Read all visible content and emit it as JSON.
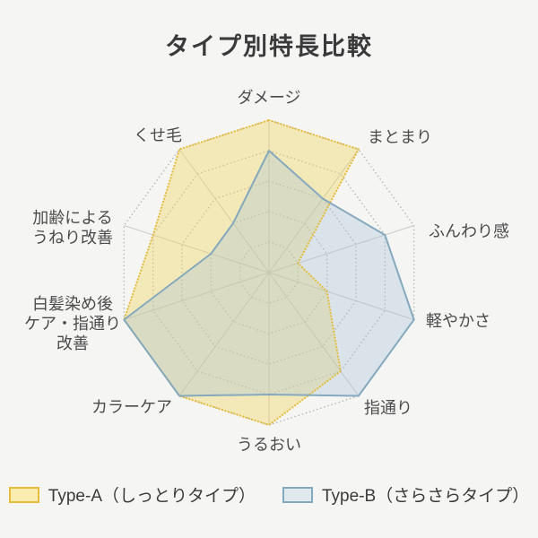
{
  "title": "タイプ別特長比較",
  "colors": {
    "background": "#f5f5f4",
    "title_text": "#3a3a3a",
    "label_text": "#4b4b4b",
    "axis_line": "#c9c9c7",
    "ring_line": "#b3b3b3",
    "type_a_fill": "#f0d560",
    "type_a_fill_opacity": 0.4,
    "type_a_stroke": "#e4bd3e",
    "type_b_fill": "#a8c4d4",
    "type_b_fill_opacity": 0.35,
    "type_b_stroke": "#85a9bd"
  },
  "chart_data": {
    "type": "radar",
    "title": "タイプ別特長比較",
    "max": 5,
    "levels": 5,
    "grid": "dotted-decagon-rings-with-solid-axes",
    "legend_position": "bottom",
    "categories": [
      "ダメージ",
      "まとまり",
      "ふんわり感",
      "軽やかさ",
      "指通り",
      "うるおい",
      "カラーケア",
      "白髪染め後ケア・指通り改善",
      "加齢によるうねり改善",
      "くせ毛"
    ],
    "category_label_lines": [
      [
        "ダメージ"
      ],
      [
        "まとまり"
      ],
      [
        "ふんわり感"
      ],
      [
        "軽やかさ"
      ],
      [
        "指通り"
      ],
      [
        "うるおい"
      ],
      [
        "カラーケア"
      ],
      [
        "白髪染め後",
        "ケア・指通り",
        "改善"
      ],
      [
        "加齢による",
        "うねり改善"
      ],
      [
        "くせ毛"
      ]
    ],
    "series": [
      {
        "name": "Type-A（しっとりタイプ）",
        "style": "dotted-gold-outline-yellow-fill",
        "values": [
          5,
          5,
          1,
          2,
          4,
          5,
          5,
          5,
          4,
          5
        ]
      },
      {
        "name": "Type-B（さらさらタイプ）",
        "style": "solid-blue-outline-blue-fill",
        "values": [
          4,
          3,
          4,
          5,
          5,
          4,
          5,
          5,
          2,
          2
        ]
      }
    ]
  },
  "legend": {
    "items": [
      {
        "label": "Type-A（しっとりタイプ）",
        "swatch": "type-a"
      },
      {
        "label": "Type-B（さらさらタイプ）",
        "swatch": "type-b"
      }
    ]
  }
}
